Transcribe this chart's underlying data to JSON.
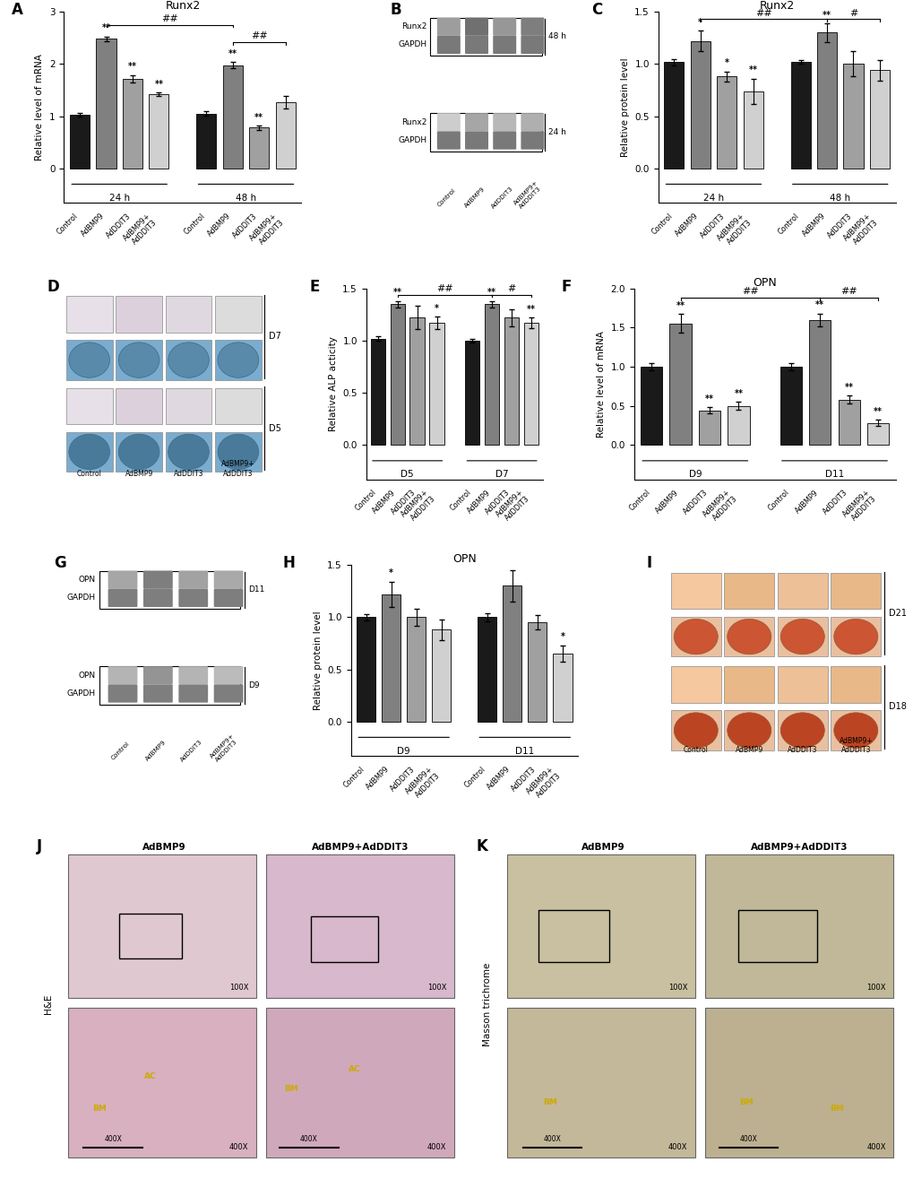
{
  "panel_A": {
    "title": "Runx2",
    "ylabel": "Relative level of mRNA",
    "categories": [
      "Control",
      "AdBMP9",
      "AdDDIT3",
      "AdBMP9+\nAdDDIT3"
    ],
    "values_24h": [
      1.03,
      2.48,
      1.72,
      1.42
    ],
    "values_48h": [
      1.05,
      1.98,
      0.78,
      1.27
    ],
    "errors_24h": [
      0.04,
      0.05,
      0.07,
      0.03
    ],
    "errors_48h": [
      0.04,
      0.06,
      0.04,
      0.12
    ],
    "ylim": [
      0,
      3.0
    ],
    "yticks": [
      0,
      1,
      2,
      3
    ],
    "stars_24h": [
      "",
      "**",
      "**",
      "**"
    ],
    "stars_48h": [
      "",
      "**",
      "**",
      ""
    ]
  },
  "panel_C": {
    "title": "Runx2",
    "ylabel": "Relative protein level",
    "categories": [
      "Control",
      "AdBMP9",
      "AdDDIT3",
      "AdBMP9+\nAdDDIT3"
    ],
    "values_24h": [
      1.02,
      1.22,
      0.88,
      0.74
    ],
    "values_48h": [
      1.02,
      1.3,
      1.0,
      0.94
    ],
    "errors_24h": [
      0.03,
      0.1,
      0.05,
      0.12
    ],
    "errors_48h": [
      0.02,
      0.09,
      0.12,
      0.1
    ],
    "ylim": [
      0.0,
      1.5
    ],
    "yticks": [
      0.0,
      0.5,
      1.0,
      1.5
    ],
    "stars_24h": [
      "",
      "*",
      "*",
      "**"
    ],
    "stars_48h": [
      "",
      "**",
      "",
      ""
    ]
  },
  "panel_E": {
    "title": "",
    "ylabel": "Relative ALP acticity",
    "categories": [
      "Control",
      "AdBMP9",
      "AdDDIT3",
      "AdBMP9+\nAdDDIT3"
    ],
    "values_D5": [
      1.02,
      1.35,
      1.22,
      1.17
    ],
    "values_D7": [
      1.0,
      1.35,
      1.22,
      1.17
    ],
    "errors_D5": [
      0.02,
      0.03,
      0.11,
      0.06
    ],
    "errors_D7": [
      0.02,
      0.03,
      0.08,
      0.05
    ],
    "ylim": [
      0.0,
      1.5
    ],
    "yticks": [
      0.0,
      0.5,
      1.0,
      1.5
    ],
    "stars_D5": [
      "",
      "**",
      "",
      "*"
    ],
    "stars_D7": [
      "",
      "**",
      "",
      "**"
    ]
  },
  "panel_F": {
    "title": "OPN",
    "ylabel": "Relative level of mRNA",
    "categories": [
      "Control",
      "AdBMP9",
      "AdDDIT3",
      "AdBMP9+\nAdDDIT3"
    ],
    "values_D9": [
      1.0,
      1.55,
      0.44,
      0.5
    ],
    "values_D11": [
      1.0,
      1.6,
      0.58,
      0.28
    ],
    "errors_D9": [
      0.05,
      0.12,
      0.04,
      0.05
    ],
    "errors_D11": [
      0.05,
      0.08,
      0.05,
      0.04
    ],
    "ylim": [
      0.0,
      2.0
    ],
    "yticks": [
      0.0,
      0.5,
      1.0,
      1.5,
      2.0
    ],
    "stars_D9": [
      "",
      "**",
      "**",
      "**"
    ],
    "stars_D11": [
      "",
      "**",
      "**",
      "**"
    ]
  },
  "panel_H": {
    "title": "OPN",
    "ylabel": "Relative protein level",
    "categories": [
      "Control",
      "AdBMP9",
      "AdDDIT3",
      "AdBMP9+\nAdDDIT3"
    ],
    "values_D9": [
      1.0,
      1.22,
      1.0,
      0.88
    ],
    "values_D11": [
      1.0,
      1.3,
      0.95,
      0.65
    ],
    "errors_D9": [
      0.03,
      0.12,
      0.08,
      0.1
    ],
    "errors_D11": [
      0.04,
      0.15,
      0.07,
      0.08
    ],
    "ylim": [
      0.0,
      1.5
    ],
    "yticks": [
      0.0,
      0.5,
      1.0,
      1.5
    ],
    "stars_D9": [
      "",
      "*",
      "",
      ""
    ],
    "stars_D11": [
      "",
      "",
      "",
      "*"
    ]
  },
  "bar_colors": [
    "#1a1a1a",
    "#808080",
    "#a0a0a0",
    "#d0d0d0"
  ],
  "lane_labels": [
    "Control",
    "AdBMP9",
    "AdDDIT3",
    "AdBMP9+\nAdDDIT3"
  ]
}
